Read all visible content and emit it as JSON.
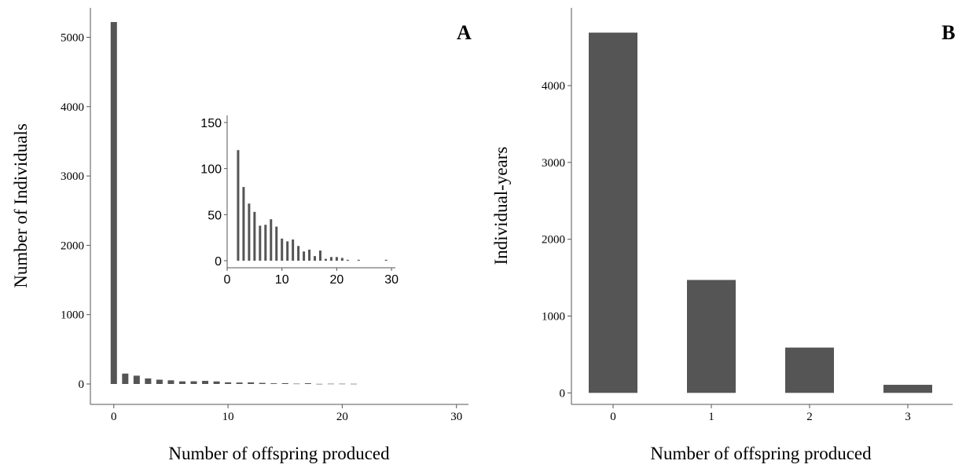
{
  "colors": {
    "bar": "#555555",
    "axis": "#555555",
    "text": "#000000"
  },
  "chart_data": [
    {
      "type": "bar",
      "panel_label": "A",
      "xlabel": "Number of offspring produced",
      "ylabel": "Number of Individuals",
      "xlim": [
        -1.5,
        30.5
      ],
      "ylim": [
        0,
        5300
      ],
      "xticks": [
        0,
        10,
        20,
        30
      ],
      "yticks": [
        0,
        1000,
        2000,
        3000,
        4000,
        5000
      ],
      "x": [
        0,
        1,
        2,
        3,
        4,
        5,
        6,
        7,
        8,
        9,
        10,
        11,
        12,
        13,
        14,
        15,
        16,
        17,
        18,
        19,
        20,
        21
      ],
      "values": [
        5220,
        150,
        120,
        80,
        62,
        53,
        38,
        39,
        45,
        37,
        24,
        21,
        23,
        16,
        10,
        12,
        5,
        11,
        2,
        4,
        4,
        3
      ],
      "grid": false
    },
    {
      "type": "bar",
      "role": "inset",
      "xlim": [
        0,
        30.7
      ],
      "ylim": [
        0,
        155
      ],
      "xticks": [
        0,
        10,
        20,
        30
      ],
      "yticks": [
        0,
        50,
        100,
        150
      ],
      "x": [
        2,
        3,
        4,
        5,
        6,
        7,
        8,
        9,
        10,
        11,
        12,
        13,
        14,
        15,
        16,
        17,
        18,
        19,
        20,
        21,
        22,
        24,
        29
      ],
      "values": [
        120,
        80,
        62,
        53,
        38,
        39,
        45,
        37,
        24,
        21,
        23,
        16,
        10,
        12,
        5,
        11,
        2,
        4,
        4,
        3,
        1,
        1,
        1
      ],
      "grid": false
    },
    {
      "type": "bar",
      "panel_label": "B",
      "xlabel": "Number of offspring produced",
      "ylabel": "Individual-years",
      "categories": [
        "0",
        "1",
        "2",
        "3"
      ],
      "values": [
        4690,
        1470,
        590,
        105
      ],
      "ylim": [
        -150,
        4900
      ],
      "yticks": [
        0,
        1000,
        2000,
        3000,
        4000
      ],
      "grid": false
    }
  ]
}
